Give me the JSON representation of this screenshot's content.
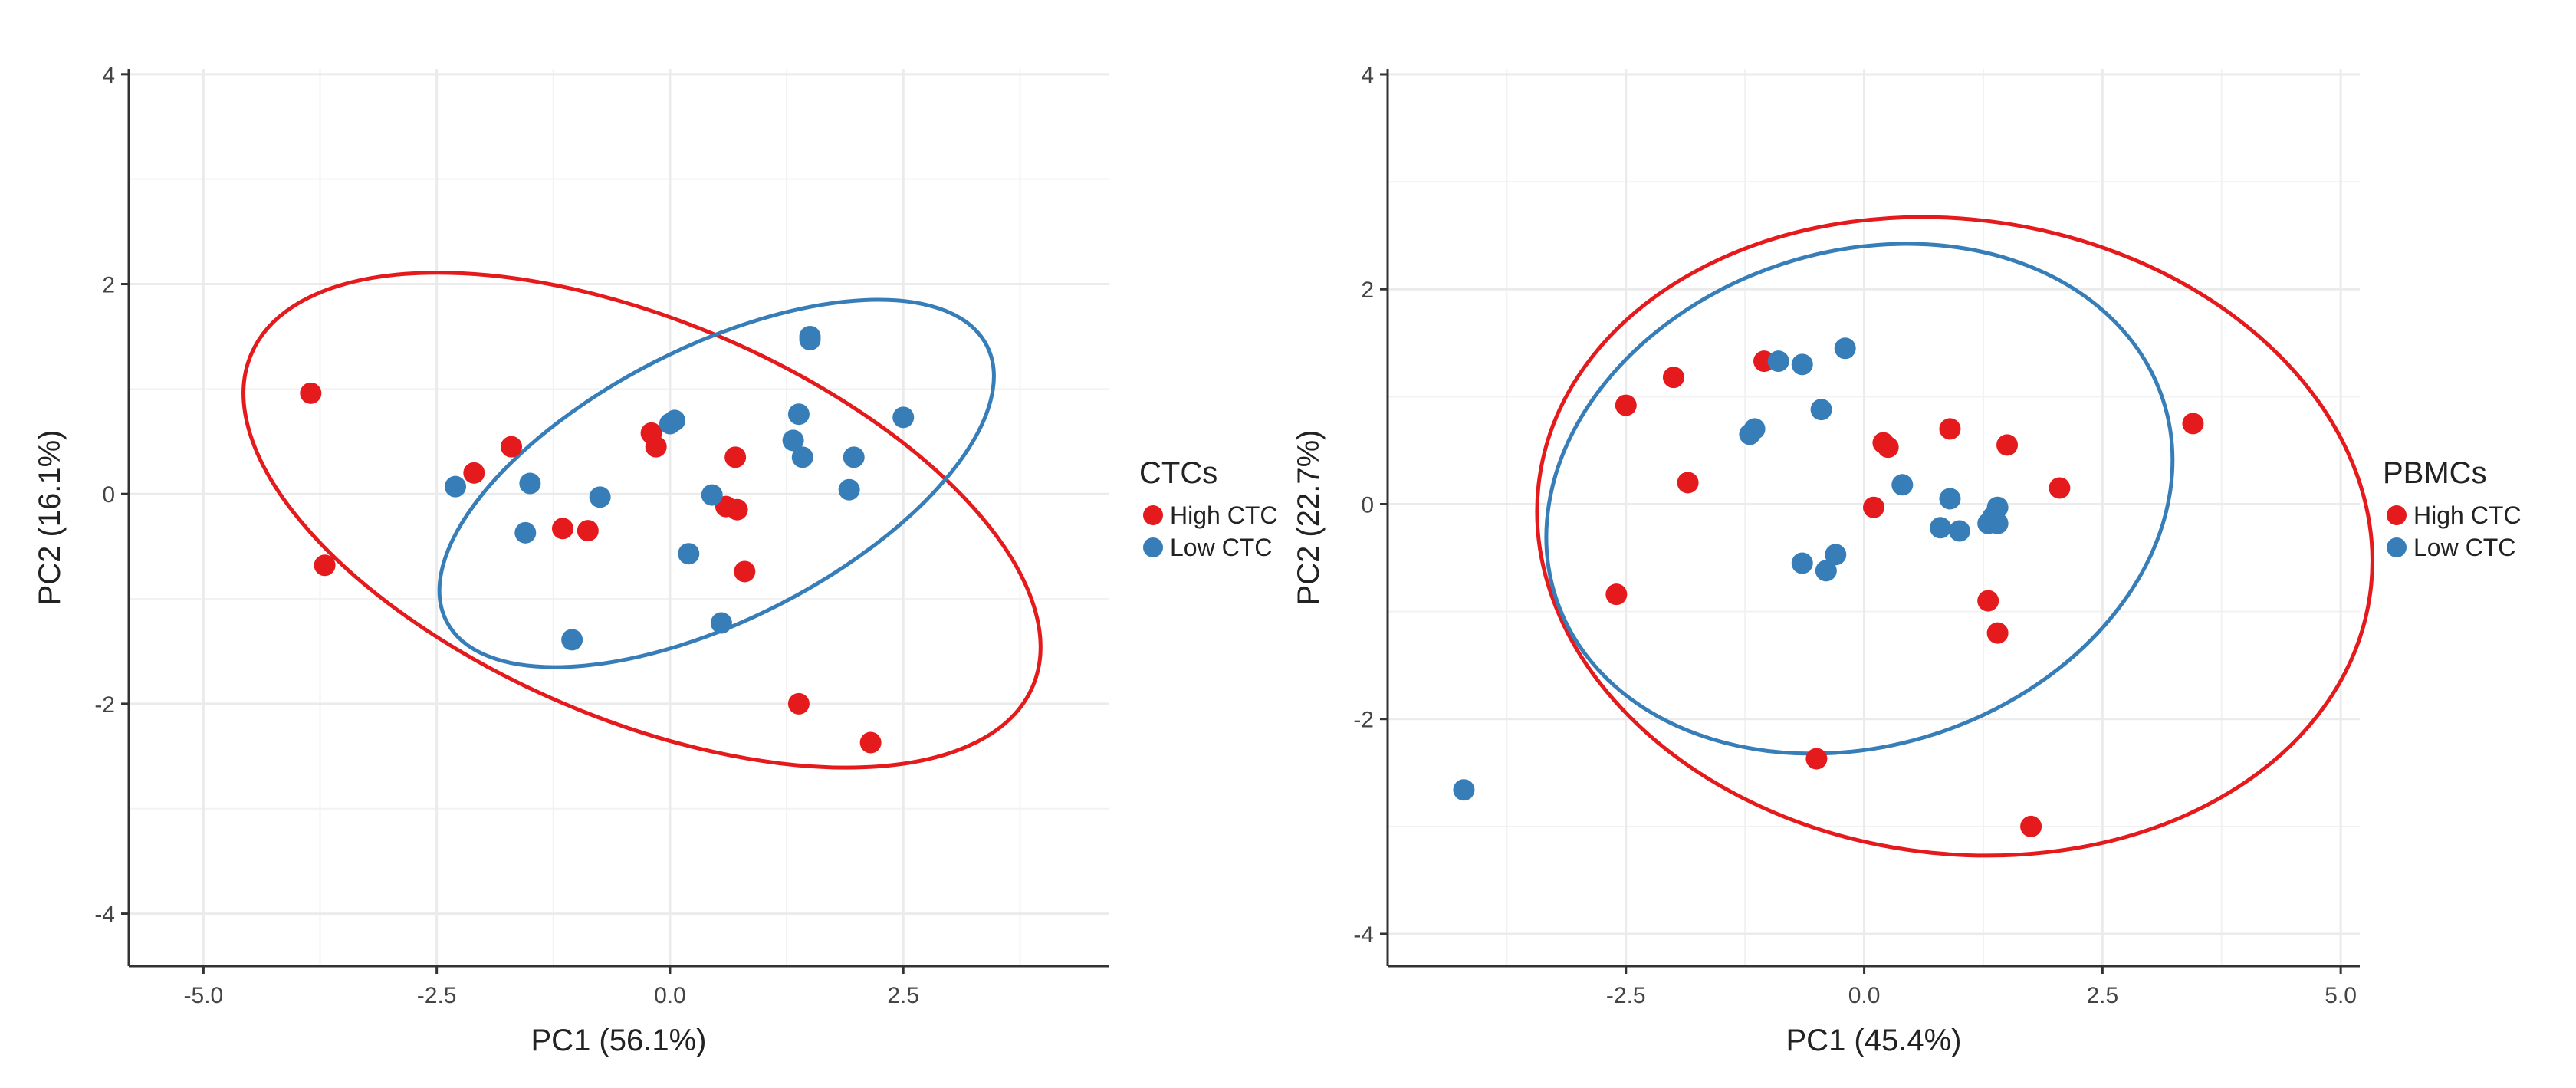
{
  "colors": {
    "high": "#e41a1c",
    "low": "#377eb8",
    "grid": "#ebebeb",
    "axis": "#333333"
  },
  "chart_data": [
    {
      "type": "scatter",
      "name": "ctcs",
      "xlabel": "PC1 (56.1%)",
      "ylabel": "PC2 (16.1%)",
      "xlim": [
        -5.8,
        4.7
      ],
      "ylim": [
        -4.5,
        4.05
      ],
      "xticks": [
        -5.0,
        -2.5,
        0.0,
        2.5
      ],
      "xtick_labels": [
        "-5.0",
        "-2.5",
        "0.0",
        "2.5"
      ],
      "yticks": [
        -4,
        -2,
        0,
        2,
        4
      ],
      "ytick_labels": [
        "-4",
        "-2",
        "0",
        "2",
        "4"
      ],
      "legend": {
        "title": "CTCs",
        "position": "right",
        "entries": [
          "High CTC",
          "Low CTC"
        ]
      },
      "series": [
        {
          "name": "High CTC",
          "points": [
            [
              -3.85,
              0.96
            ],
            [
              -3.7,
              -0.68
            ],
            [
              -2.1,
              0.2
            ],
            [
              -1.7,
              0.45
            ],
            [
              -1.15,
              -0.33
            ],
            [
              -0.88,
              -0.35
            ],
            [
              -0.2,
              0.58
            ],
            [
              -0.15,
              0.45
            ],
            [
              0.6,
              -0.12
            ],
            [
              0.72,
              -0.15
            ],
            [
              0.7,
              0.35
            ],
            [
              0.8,
              -0.74
            ],
            [
              1.38,
              -2.0
            ],
            [
              2.15,
              -2.37
            ]
          ],
          "ellipse": {
            "cx": -0.3,
            "cy": -0.25,
            "rx": 4.55,
            "ry": 1.9,
            "angle_deg": -23
          }
        },
        {
          "name": "Low CTC",
          "points": [
            [
              -2.3,
              0.07
            ],
            [
              -1.5,
              0.1
            ],
            [
              -1.55,
              -0.37
            ],
            [
              -1.05,
              -1.39
            ],
            [
              -0.75,
              -0.03
            ],
            [
              0.0,
              0.67
            ],
            [
              0.05,
              0.7
            ],
            [
              0.2,
              -0.57
            ],
            [
              0.45,
              -0.01
            ],
            [
              0.55,
              -1.23
            ],
            [
              1.32,
              0.51
            ],
            [
              1.38,
              0.76
            ],
            [
              1.42,
              0.35
            ],
            [
              1.5,
              1.5
            ],
            [
              1.5,
              1.47
            ],
            [
              1.92,
              0.04
            ],
            [
              1.97,
              0.35
            ],
            [
              2.5,
              0.73
            ]
          ],
          "ellipse": {
            "cx": 0.5,
            "cy": 0.1,
            "rx": 3.25,
            "ry": 1.3,
            "angle_deg": 27
          }
        }
      ]
    },
    {
      "type": "scatter",
      "name": "pbmcs",
      "xlabel": "PC1 (45.4%)",
      "ylabel": "PC2 (22.7%)",
      "xlim": [
        -5.0,
        5.2
      ],
      "ylim": [
        -4.3,
        4.05
      ],
      "xticks": [
        -2.5,
        0.0,
        2.5,
        5.0
      ],
      "xtick_labels": [
        "-2.5",
        "0.0",
        "2.5",
        "5.0"
      ],
      "yticks": [
        -4,
        -2,
        0,
        2,
        4
      ],
      "ytick_labels": [
        "-4",
        "-2",
        "0",
        "2",
        "4"
      ],
      "legend": {
        "title": "PBMCs",
        "position": "right",
        "entries": [
          "High CTC",
          "Low CTC"
        ]
      },
      "series": [
        {
          "name": "High CTC",
          "points": [
            [
              -2.5,
              0.92
            ],
            [
              -2.0,
              1.18
            ],
            [
              -1.85,
              0.2
            ],
            [
              -2.6,
              -0.84
            ],
            [
              -1.05,
              1.33
            ],
            [
              -0.5,
              -2.37
            ],
            [
              0.1,
              -0.03
            ],
            [
              0.2,
              0.57
            ],
            [
              0.25,
              0.53
            ],
            [
              0.9,
              0.7
            ],
            [
              1.3,
              -0.9
            ],
            [
              1.4,
              -1.2
            ],
            [
              1.5,
              0.55
            ],
            [
              2.05,
              0.15
            ],
            [
              1.75,
              -3.0
            ],
            [
              3.45,
              0.75
            ]
          ],
          "ellipse": {
            "cx": 0.95,
            "cy": -0.3,
            "rx": 4.4,
            "ry": 2.95,
            "angle_deg": -8
          }
        },
        {
          "name": "Low CTC",
          "points": [
            [
              -4.2,
              -2.66
            ],
            [
              -1.2,
              0.65
            ],
            [
              -1.15,
              0.7
            ],
            [
              -0.9,
              1.33
            ],
            [
              -0.65,
              1.3
            ],
            [
              -0.45,
              0.88
            ],
            [
              -0.2,
              1.45
            ],
            [
              -0.65,
              -0.55
            ],
            [
              -0.4,
              -0.62
            ],
            [
              -0.3,
              -0.47
            ],
            [
              0.4,
              0.18
            ],
            [
              0.8,
              -0.22
            ],
            [
              0.9,
              0.05
            ],
            [
              1.0,
              -0.25
            ],
            [
              1.3,
              -0.18
            ],
            [
              1.35,
              -0.12
            ],
            [
              1.4,
              -0.03
            ],
            [
              1.4,
              -0.18
            ]
          ],
          "ellipse": {
            "cx": -0.05,
            "cy": 0.05,
            "rx": 3.35,
            "ry": 2.3,
            "angle_deg": 18
          }
        }
      ]
    }
  ]
}
